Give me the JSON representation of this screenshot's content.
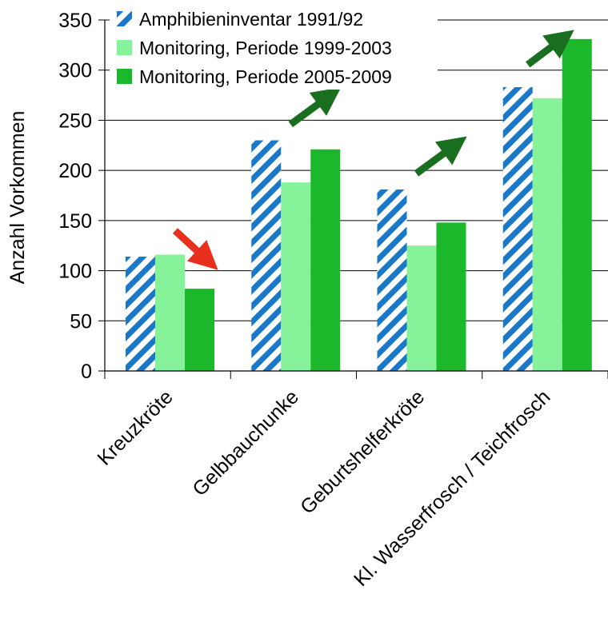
{
  "chart_data": {
    "type": "bar",
    "title": "",
    "xlabel": "",
    "ylabel": "Anzahl Vorkommen",
    "ylim": [
      0,
      350
    ],
    "yticks": [
      0,
      50,
      100,
      150,
      200,
      250,
      300,
      350
    ],
    "grid": true,
    "legend_position": "top-left",
    "categories": [
      "Kreuzkröte",
      "Gelbbauchunke",
      "Geburtshelferkröte",
      "Kl. Wasserfrosch / Teichfrosch"
    ],
    "series": [
      {
        "name": "Amphibieninventar 1991/92",
        "values": [
          114,
          230,
          181,
          283
        ],
        "color": "#1a78c8",
        "pattern": "diagonal-stripes"
      },
      {
        "name": "Monitoring, Periode 1999-2003",
        "values": [
          116,
          188,
          125,
          272
        ],
        "color": "#86f29a"
      },
      {
        "name": "Monitoring, Periode 2005-2009",
        "values": [
          82,
          221,
          148,
          331
        ],
        "color": "#1ab82a"
      }
    ],
    "trend_arrows": [
      {
        "category": "Kreuzkröte",
        "direction": "down",
        "color": "#e8301c"
      },
      {
        "category": "Gelbbauchunke",
        "direction": "up",
        "color": "#1a6e1f"
      },
      {
        "category": "Geburtshelferkröte",
        "direction": "up",
        "color": "#1a6e1f"
      },
      {
        "category": "Kl. Wasserfrosch / Teichfrosch",
        "direction": "up",
        "color": "#1a6e1f"
      }
    ]
  }
}
